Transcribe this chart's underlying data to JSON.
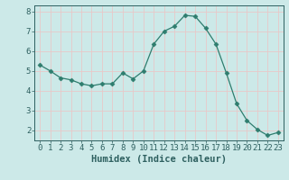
{
  "x": [
    0,
    1,
    2,
    3,
    4,
    5,
    6,
    7,
    8,
    9,
    10,
    11,
    12,
    13,
    14,
    15,
    16,
    17,
    18,
    19,
    20,
    21,
    22,
    23
  ],
  "y": [
    5.3,
    5.0,
    4.65,
    4.55,
    4.35,
    4.25,
    4.35,
    4.35,
    4.9,
    4.6,
    5.0,
    6.35,
    7.0,
    7.25,
    7.8,
    7.75,
    7.15,
    6.35,
    4.9,
    3.35,
    2.5,
    2.05,
    1.75,
    1.9
  ],
  "line_color": "#2e7d6e",
  "marker": "D",
  "marker_size": 2.5,
  "bg_color": "#cce9e8",
  "grid_color": "#e8c8c8",
  "axis_color": "#2e6060",
  "xlabel": "Humidex (Indice chaleur)",
  "ylabel": "",
  "xlim": [
    -0.5,
    23.5
  ],
  "ylim": [
    1.5,
    8.3
  ],
  "yticks": [
    2,
    3,
    4,
    5,
    6,
    7,
    8
  ],
  "xticks": [
    0,
    1,
    2,
    3,
    4,
    5,
    6,
    7,
    8,
    9,
    10,
    11,
    12,
    13,
    14,
    15,
    16,
    17,
    18,
    19,
    20,
    21,
    22,
    23
  ],
  "label_fontsize": 7.5,
  "tick_fontsize": 6.5
}
